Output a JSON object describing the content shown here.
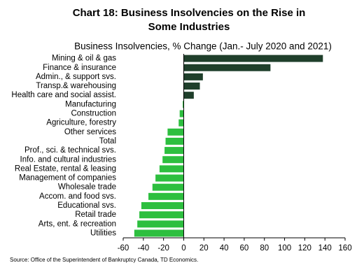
{
  "chart_data": {
    "type": "hbar",
    "title": [
      "Chart 18: Business Insolvencies on the Rise in",
      "Some Industries"
    ],
    "subtitle": "Business Insolvencies, % Change (Jan.- July 2020 and 2021)",
    "source": "Source: Office of the Superintendent of Bankruptcy Canada, TD Economics.",
    "categories": [
      "Mining & oil & gas",
      "Finance & insurance",
      "Admin., & support svs.",
      "Transp.& warehousing",
      "Health care and social assist.",
      "Manufacturing",
      "Construction",
      "Agriculture, forestry",
      "Other services",
      "Total",
      "Prof., sci. & technical svs.",
      "Info. and cultural industries",
      "Real Estate, rental & leasing",
      "Management of companies",
      "Wholesale trade",
      "Accom. and food svs.",
      "Educational svs.",
      "Retail trade",
      "Arts, ent. & recreation",
      "Utilities"
    ],
    "values": [
      138,
      86,
      19,
      16,
      10,
      -1,
      -4,
      -5,
      -16,
      -18,
      -19,
      -21,
      -24,
      -28,
      -31,
      -35,
      -42,
      -44,
      -46,
      -49
    ],
    "color_positive": "#1f3f2b",
    "color_negative": "#2dbf3f",
    "xlim": [
      -60,
      160
    ],
    "xticks": [
      -60,
      -40,
      -20,
      0,
      20,
      40,
      60,
      80,
      100,
      120,
      140,
      160
    ]
  }
}
